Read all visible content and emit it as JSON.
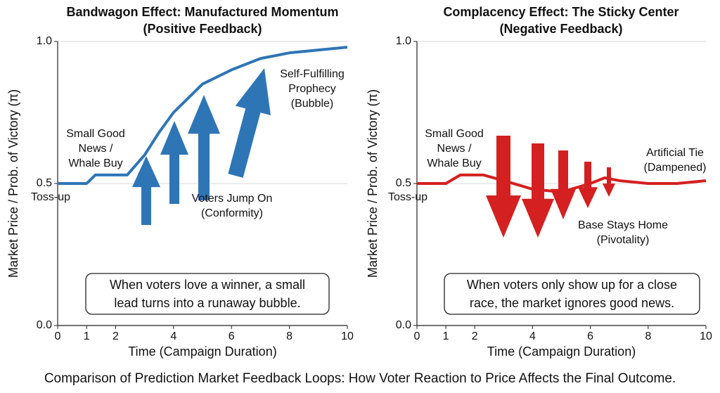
{
  "caption": "Comparison of Prediction Market Feedback Loops: How Voter Reaction to Price Affects the Final Outcome.",
  "chart_data": [
    {
      "type": "line",
      "title": "Bandwagon Effect: Manufactured Momentum",
      "subtitle": "(Positive Feedback)",
      "x_label": "Time (Campaign Duration)",
      "y_label": "Market Price / Prob. of Victory (π)",
      "x": [
        0,
        1,
        1.3,
        2.4,
        3,
        3.5,
        4,
        5,
        6,
        7,
        8,
        9,
        10
      ],
      "series": [
        {
          "color": "#2e75b6",
          "values": [
            0.5,
            0.5,
            0.53,
            0.53,
            0.6,
            0.68,
            0.75,
            0.85,
            0.9,
            0.94,
            0.96,
            0.97,
            0.98
          ]
        }
      ],
      "xlim": [
        0,
        10
      ],
      "ylim": [
        0,
        1
      ],
      "xticks": [
        0,
        1,
        2,
        4,
        6,
        8,
        10
      ],
      "yticks": [
        {
          "value": 0,
          "label": "0.0"
        },
        {
          "value": 0.5,
          "label": "0.5"
        },
        {
          "value": 1,
          "label": "1.0"
        }
      ],
      "grid": true,
      "annotations": [
        [
          "Small Good",
          "News /",
          "Whale Buy"
        ],
        [
          "Toss-up"
        ],
        [
          "Voters Jump On",
          "(Conformity)"
        ],
        [
          "Self-Fulfilling",
          "Prophecy",
          "(Bubble)"
        ]
      ],
      "note": [
        "When voters love a winner, a small",
        "lead turns into a runaway bubble."
      ]
    },
    {
      "type": "line",
      "title": "Complacency Effect: The Sticky Center",
      "subtitle": "(Negative Feedback)",
      "x_label": "Time (Campaign Duration)",
      "y_label": "Market Price / Prob. of Victory (π)",
      "x": [
        0,
        1,
        1.5,
        2.3,
        3,
        4,
        5,
        6,
        6.5,
        7,
        8,
        9,
        10
      ],
      "series": [
        {
          "color": "#d42020",
          "values": [
            0.5,
            0.5,
            0.53,
            0.53,
            0.51,
            0.48,
            0.47,
            0.5,
            0.52,
            0.51,
            0.5,
            0.5,
            0.51
          ]
        }
      ],
      "xlim": [
        0,
        10
      ],
      "ylim": [
        0,
        1
      ],
      "xticks": [
        0,
        1,
        2,
        4,
        6,
        8,
        10
      ],
      "yticks": [
        {
          "value": 0,
          "label": "0.0"
        },
        {
          "value": 0.5,
          "label": "0.5"
        },
        {
          "value": 1,
          "label": "1.0"
        }
      ],
      "grid": true,
      "annotations": [
        [
          "Small Good",
          "News /",
          "Whale Buy"
        ],
        [
          "Toss-up"
        ],
        [
          "Artificial Tie",
          "(Dampened)"
        ],
        [
          "Base Stays Home",
          "(Pivotality)"
        ]
      ],
      "note": [
        "When voters only show up for a close",
        "race, the market ignores good news."
      ]
    }
  ]
}
